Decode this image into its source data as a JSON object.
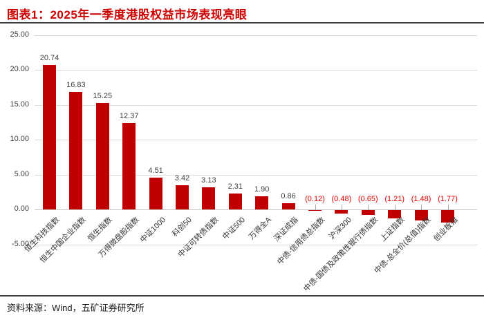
{
  "header": {
    "title": "图表1：2025年一季度港股权益市场表现亮眼"
  },
  "footer": {
    "source_label": "资料来源：Wind，五矿证券研究所"
  },
  "colors": {
    "title_red": "#cc0000",
    "bar_red": "#c00000",
    "negative_label_red": "#e60000",
    "positive_label_gray": "#404040",
    "gridline_gray": "#d9d9d9",
    "zero_line_gray": "#c6c6c6",
    "divider_dark": "#3d3d3d"
  },
  "chart_data": {
    "type": "bar",
    "title": "图表1：2025年一季度港股权益市场表现亮眼",
    "xlabel": "",
    "ylabel": "",
    "ylim": [
      -5,
      25
    ],
    "ytick_step": 5,
    "grid": true,
    "legend": "none",
    "negative_label_style": "red-parentheses",
    "categories": [
      "恒生科技指数",
      "恒生中国企业指数",
      "恒生指数",
      "万得微盘股指数",
      "中证1000",
      "科创50",
      "中证可转债指数",
      "中证500",
      "万得全A",
      "深证成指",
      "中债-信用债总指数",
      "沪深300",
      "中债-国债及政策性银行债指数",
      "上证指数",
      "中债-总全价(总值)指数",
      "创业板指"
    ],
    "values": [
      20.74,
      16.83,
      15.25,
      12.37,
      4.51,
      3.42,
      3.13,
      2.31,
      1.9,
      0.86,
      -0.12,
      -0.48,
      -0.65,
      -1.21,
      -1.48,
      -1.77
    ]
  }
}
